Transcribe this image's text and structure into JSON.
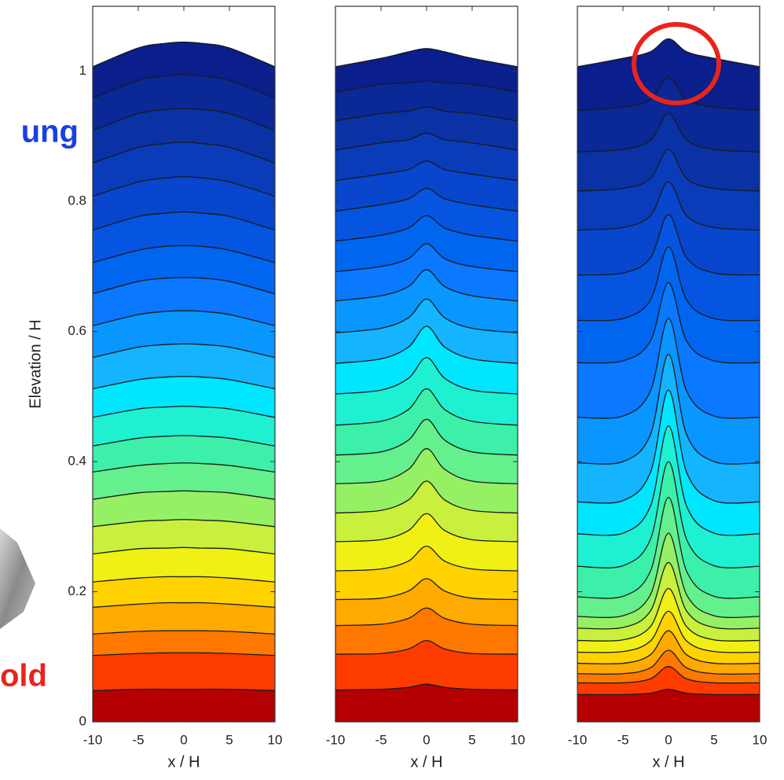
{
  "overlay": {
    "top_text": "ung",
    "bottom_text": "old"
  },
  "chart_data": [
    {
      "type": "isochrone",
      "x": [
        -10,
        -5,
        -2,
        0,
        2,
        5,
        10
      ],
      "xlim": [
        -10,
        10
      ],
      "xticks": [
        -10,
        -5,
        0,
        5,
        10
      ],
      "ylim": [
        0,
        1.1
      ],
      "yticks": [
        0,
        0.2,
        0.4,
        0.6,
        0.8,
        1
      ],
      "xlabel": "x / H",
      "ylabel": "Elevation / H",
      "series": [
        {
          "color": "#0a1e8c",
          "values": [
            1.007,
            1.036,
            1.043,
            1.045,
            1.043,
            1.036,
            1.007
          ]
        },
        {
          "color": "#0a2896",
          "values": [
            0.959,
            0.986,
            0.993,
            0.995,
            0.993,
            0.986,
            0.959
          ]
        },
        {
          "color": "#0a32a5",
          "values": [
            0.909,
            0.935,
            0.941,
            0.943,
            0.941,
            0.935,
            0.909
          ]
        },
        {
          "color": "#0a3cb9",
          "values": [
            0.859,
            0.883,
            0.889,
            0.891,
            0.889,
            0.883,
            0.859
          ]
        },
        {
          "color": "#0846cd",
          "values": [
            0.808,
            0.83,
            0.836,
            0.838,
            0.836,
            0.83,
            0.808
          ]
        },
        {
          "color": "#0555e0",
          "values": [
            0.756,
            0.777,
            0.782,
            0.784,
            0.782,
            0.777,
            0.756
          ]
        },
        {
          "color": "#0066f0",
          "values": [
            0.706,
            0.725,
            0.731,
            0.732,
            0.731,
            0.725,
            0.706
          ]
        },
        {
          "color": "#0a78ff",
          "values": [
            0.658,
            0.677,
            0.682,
            0.683,
            0.682,
            0.677,
            0.658
          ]
        },
        {
          "color": "#0a96ff",
          "values": [
            0.609,
            0.626,
            0.631,
            0.632,
            0.631,
            0.626,
            0.609
          ]
        },
        {
          "color": "#14b4ff",
          "values": [
            0.56,
            0.576,
            0.58,
            0.581,
            0.58,
            0.576,
            0.56
          ]
        },
        {
          "color": "#00e6ff",
          "values": [
            0.512,
            0.526,
            0.53,
            0.531,
            0.53,
            0.526,
            0.512
          ]
        },
        {
          "color": "#1ef0d2",
          "values": [
            0.468,
            0.481,
            0.484,
            0.485,
            0.484,
            0.481,
            0.468
          ]
        },
        {
          "color": "#3cf0aa",
          "values": [
            0.424,
            0.436,
            0.439,
            0.44,
            0.439,
            0.436,
            0.424
          ]
        },
        {
          "color": "#64f08c",
          "values": [
            0.384,
            0.394,
            0.397,
            0.398,
            0.397,
            0.394,
            0.384
          ]
        },
        {
          "color": "#96f064",
          "values": [
            0.342,
            0.352,
            0.354,
            0.355,
            0.354,
            0.352,
            0.342
          ]
        },
        {
          "color": "#c8f03c",
          "values": [
            0.3,
            0.308,
            0.31,
            0.311,
            0.31,
            0.308,
            0.3
          ]
        },
        {
          "color": "#f0f014",
          "values": [
            0.258,
            0.266,
            0.267,
            0.268,
            0.267,
            0.266,
            0.258
          ]
        },
        {
          "color": "#ffd200",
          "values": [
            0.215,
            0.221,
            0.223,
            0.223,
            0.223,
            0.221,
            0.215
          ]
        },
        {
          "color": "#ffaa00",
          "values": [
            0.176,
            0.181,
            0.183,
            0.183,
            0.183,
            0.181,
            0.176
          ]
        },
        {
          "color": "#ff7800",
          "values": [
            0.135,
            0.139,
            0.14,
            0.14,
            0.14,
            0.139,
            0.135
          ]
        },
        {
          "color": "#ff3c00",
          "values": [
            0.102,
            0.105,
            0.106,
            0.106,
            0.106,
            0.105,
            0.102
          ]
        },
        {
          "color": "#b40000",
          "values": [
            0.048,
            0.05,
            0.05,
            0.05,
            0.05,
            0.05,
            0.048
          ]
        }
      ]
    },
    {
      "type": "isochrone",
      "x": [
        -10,
        -5,
        -2,
        0,
        2,
        5,
        10
      ],
      "xlim": [
        -10,
        10
      ],
      "xticks": [
        -10,
        -5,
        0,
        5,
        10
      ],
      "ylim": [
        0,
        1.1
      ],
      "xlabel": "x / H",
      "series": [
        {
          "color": "#0a1e8c",
          "values": [
            1.007,
            1.02,
            1.03,
            1.035,
            1.03,
            1.02,
            1.007
          ]
        },
        {
          "color": "#0a2896",
          "values": [
            0.968,
            0.98,
            0.982,
            0.985,
            0.982,
            0.98,
            0.968
          ]
        },
        {
          "color": "#0a32a5",
          "values": [
            0.924,
            0.935,
            0.939,
            0.945,
            0.939,
            0.935,
            0.924
          ]
        },
        {
          "color": "#0a3cb9",
          "values": [
            0.879,
            0.89,
            0.895,
            0.905,
            0.895,
            0.89,
            0.879
          ]
        },
        {
          "color": "#0846cd",
          "values": [
            0.832,
            0.842,
            0.849,
            0.862,
            0.849,
            0.842,
            0.832
          ]
        },
        {
          "color": "#0555e0",
          "values": [
            0.785,
            0.795,
            0.804,
            0.82,
            0.804,
            0.795,
            0.785
          ]
        },
        {
          "color": "#0066f0",
          "values": [
            0.739,
            0.748,
            0.759,
            0.778,
            0.759,
            0.748,
            0.739
          ]
        },
        {
          "color": "#0a78ff",
          "values": [
            0.692,
            0.7,
            0.712,
            0.735,
            0.712,
            0.7,
            0.692
          ]
        },
        {
          "color": "#0a96ff",
          "values": [
            0.647,
            0.655,
            0.669,
            0.695,
            0.669,
            0.655,
            0.647
          ]
        },
        {
          "color": "#14b4ff",
          "values": [
            0.598,
            0.605,
            0.621,
            0.65,
            0.621,
            0.605,
            0.598
          ]
        },
        {
          "color": "#00e6ff",
          "values": [
            0.551,
            0.558,
            0.576,
            0.608,
            0.576,
            0.558,
            0.551
          ]
        },
        {
          "color": "#1ef0d2",
          "values": [
            0.504,
            0.51,
            0.528,
            0.56,
            0.528,
            0.51,
            0.504
          ]
        },
        {
          "color": "#3cf0aa",
          "values": [
            0.456,
            0.462,
            0.48,
            0.512,
            0.48,
            0.462,
            0.456
          ]
        },
        {
          "color": "#64f08c",
          "values": [
            0.41,
            0.415,
            0.433,
            0.465,
            0.433,
            0.415,
            0.41
          ]
        },
        {
          "color": "#96f064",
          "values": [
            0.366,
            0.37,
            0.388,
            0.42,
            0.388,
            0.37,
            0.366
          ]
        },
        {
          "color": "#c8f03c",
          "values": [
            0.321,
            0.325,
            0.341,
            0.37,
            0.341,
            0.325,
            0.321
          ]
        },
        {
          "color": "#f0f014",
          "values": [
            0.277,
            0.28,
            0.294,
            0.32,
            0.294,
            0.28,
            0.277
          ]
        },
        {
          "color": "#ffd200",
          "values": [
            0.232,
            0.235,
            0.247,
            0.27,
            0.247,
            0.235,
            0.232
          ]
        },
        {
          "color": "#ffaa00",
          "values": [
            0.188,
            0.19,
            0.201,
            0.22,
            0.201,
            0.19,
            0.188
          ]
        },
        {
          "color": "#ff7800",
          "values": [
            0.148,
            0.15,
            0.159,
            0.175,
            0.159,
            0.15,
            0.148
          ]
        },
        {
          "color": "#ff3c00",
          "values": [
            0.104,
            0.105,
            0.112,
            0.125,
            0.112,
            0.105,
            0.104
          ]
        },
        {
          "color": "#b40000",
          "values": [
            0.049,
            0.05,
            0.053,
            0.058,
            0.053,
            0.05,
            0.049
          ]
        }
      ]
    },
    {
      "type": "isochrone",
      "x": [
        -10,
        -5,
        -2,
        0,
        2,
        5,
        10
      ],
      "xlim": [
        -10,
        10
      ],
      "xticks": [
        -10,
        -5,
        0,
        5,
        10
      ],
      "ylim": [
        0,
        1.1
      ],
      "xlabel": "x / H",
      "series": [
        {
          "color": "#0a1e8c",
          "values": [
            1.007,
            1.02,
            1.03,
            1.05,
            1.03,
            1.02,
            1.007
          ]
        },
        {
          "color": "#0a2896",
          "values": [
            0.94,
            0.945,
            0.956,
            0.99,
            0.956,
            0.945,
            0.94
          ]
        },
        {
          "color": "#0a32a5",
          "values": [
            0.876,
            0.88,
            0.894,
            0.935,
            0.894,
            0.88,
            0.876
          ]
        },
        {
          "color": "#0a3cb9",
          "values": [
            0.816,
            0.82,
            0.835,
            0.88,
            0.835,
            0.82,
            0.816
          ]
        },
        {
          "color": "#0846cd",
          "values": [
            0.756,
            0.76,
            0.778,
            0.83,
            0.778,
            0.76,
            0.756
          ]
        },
        {
          "color": "#0555e0",
          "values": [
            0.687,
            0.69,
            0.713,
            0.78,
            0.713,
            0.69,
            0.687
          ]
        },
        {
          "color": "#0066f0",
          "values": [
            0.617,
            0.62,
            0.648,
            0.73,
            0.648,
            0.62,
            0.617
          ]
        },
        {
          "color": "#0a78ff",
          "values": [
            0.552,
            0.555,
            0.585,
            0.675,
            0.585,
            0.555,
            0.552
          ]
        },
        {
          "color": "#0a96ff",
          "values": [
            0.468,
            0.47,
            0.508,
            0.62,
            0.508,
            0.47,
            0.468
          ]
        },
        {
          "color": "#14b4ff",
          "values": [
            0.398,
            0.4,
            0.441,
            0.565,
            0.441,
            0.4,
            0.398
          ]
        },
        {
          "color": "#00e6ff",
          "values": [
            0.338,
            0.34,
            0.383,
            0.51,
            0.383,
            0.34,
            0.338
          ]
        },
        {
          "color": "#1ef0d2",
          "values": [
            0.289,
            0.29,
            0.331,
            0.455,
            0.331,
            0.29,
            0.289
          ]
        },
        {
          "color": "#3cf0aa",
          "values": [
            0.239,
            0.24,
            0.28,
            0.4,
            0.28,
            0.24,
            0.239
          ]
        },
        {
          "color": "#64f08c",
          "values": [
            0.192,
            0.193,
            0.231,
            0.345,
            0.231,
            0.193,
            0.192
          ]
        },
        {
          "color": "#96f064",
          "values": [
            0.162,
            0.163,
            0.195,
            0.29,
            0.195,
            0.163,
            0.162
          ]
        },
        {
          "color": "#c8f03c",
          "values": [
            0.144,
            0.145,
            0.17,
            0.245,
            0.17,
            0.145,
            0.144
          ]
        },
        {
          "color": "#f0f014",
          "values": [
            0.125,
            0.126,
            0.146,
            0.205,
            0.146,
            0.126,
            0.125
          ]
        },
        {
          "color": "#ffd200",
          "values": [
            0.107,
            0.108,
            0.124,
            0.17,
            0.124,
            0.108,
            0.107
          ]
        },
        {
          "color": "#ffaa00",
          "values": [
            0.09,
            0.09,
            0.103,
            0.14,
            0.103,
            0.09,
            0.09
          ]
        },
        {
          "color": "#ff7800",
          "values": [
            0.074,
            0.074,
            0.083,
            0.11,
            0.083,
            0.074,
            0.074
          ]
        },
        {
          "color": "#ff3c00",
          "values": [
            0.06,
            0.06,
            0.066,
            0.085,
            0.066,
            0.06,
            0.06
          ]
        },
        {
          "color": "#b40000",
          "values": [
            0.042,
            0.042,
            0.044,
            0.05,
            0.044,
            0.042,
            0.042
          ]
        }
      ]
    }
  ]
}
